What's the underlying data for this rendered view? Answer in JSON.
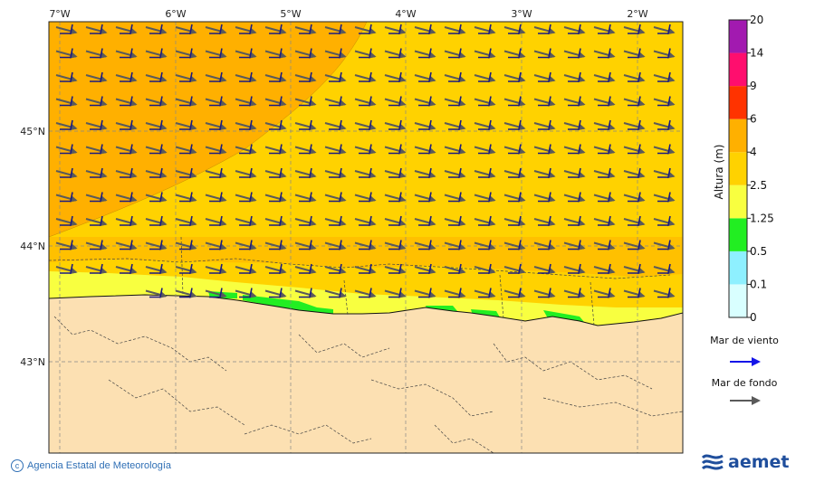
{
  "map": {
    "lon_labels": [
      "7°W",
      "6°W",
      "5°W",
      "4°W",
      "3°W",
      "2°W"
    ],
    "lat_labels": [
      "45°N",
      "44°N",
      "43°N"
    ]
  },
  "colorbar": {
    "title": "Altura (m)",
    "levels": [
      "0",
      "0.1",
      "0.5",
      "1.25",
      "2.5",
      "4",
      "6",
      "9",
      "14",
      "20"
    ],
    "colors": [
      "#d9ffff",
      "#8ef0ff",
      "#22ee22",
      "#f8ff40",
      "#ffd200",
      "#ffb000",
      "#ff3300",
      "#ff0e6e",
      "#a21ab0"
    ]
  },
  "legend": {
    "wind_sea_label": "Mar de viento",
    "swell_label": "Mar de fondo",
    "wind_sea_color": "#1515e8",
    "swell_color": "#5a5a5a"
  },
  "footer": {
    "credit": "Agencia Estatal de Meteorología",
    "brand": "aemet"
  },
  "colors": {
    "land": "#fce0b2",
    "sea_4_6": "#ffb000",
    "sea_2_5_4": "#ffd200",
    "sea_1_25_2_5": "#f8ff40",
    "sea_0_5_1_25": "#22ee22",
    "wind_barb": "#1a1a80"
  }
}
